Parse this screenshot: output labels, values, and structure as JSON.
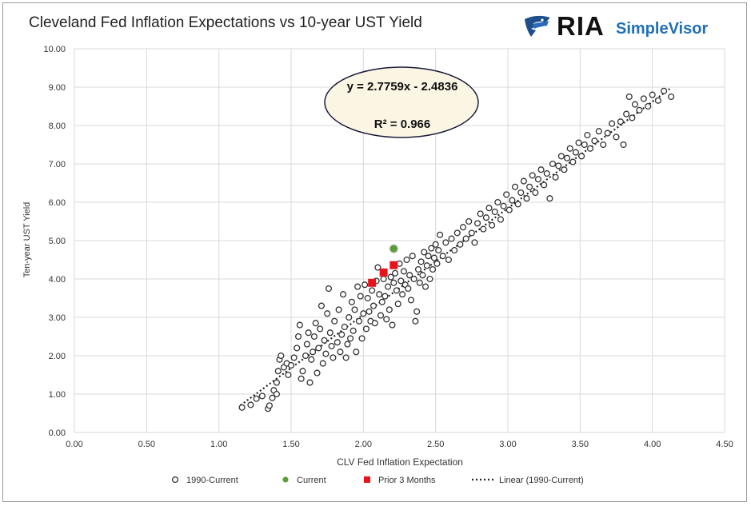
{
  "chart_data": {
    "type": "scatter",
    "title": "Cleveland Fed Inflation Expectations vs 10-year UST Yield",
    "xlabel": "CLV Fed Inflation Expectation",
    "ylabel": "Ten-year UST Yield",
    "xlim": [
      0,
      4.5
    ],
    "ylim": [
      0,
      10
    ],
    "x_ticks": [
      "0.00",
      "0.50",
      "1.00",
      "1.50",
      "2.00",
      "2.50",
      "3.00",
      "3.50",
      "4.00",
      "4.50"
    ],
    "y_ticks": [
      "0.00",
      "1.00",
      "2.00",
      "3.00",
      "4.00",
      "5.00",
      "6.00",
      "7.00",
      "8.00",
      "9.00",
      "10.00"
    ],
    "grid": true,
    "legend_position": "bottom",
    "equation": "y = 2.7759x - 2.4836",
    "r_squared": "R² = 0.966",
    "trendline": {
      "name": "Linear (1990-Current)",
      "slope": 2.7759,
      "intercept": -2.4836,
      "x_range": [
        1.15,
        4.12
      ],
      "color": "#222222"
    },
    "series": [
      {
        "name": "1990-Current",
        "marker": "hollow-circle",
        "color": "#333333",
        "points": [
          [
            1.16,
            0.65
          ],
          [
            1.22,
            0.72
          ],
          [
            1.26,
            0.88
          ],
          [
            1.3,
            0.95
          ],
          [
            1.34,
            0.62
          ],
          [
            1.35,
            0.7
          ],
          [
            1.37,
            0.9
          ],
          [
            1.38,
            1.1
          ],
          [
            1.4,
            1.0
          ],
          [
            1.4,
            1.3
          ],
          [
            1.41,
            1.6
          ],
          [
            1.42,
            1.9
          ],
          [
            1.43,
            2.0
          ],
          [
            1.45,
            1.7
          ],
          [
            1.47,
            1.8
          ],
          [
            1.48,
            1.5
          ],
          [
            1.5,
            1.75
          ],
          [
            1.52,
            1.95
          ],
          [
            1.54,
            2.2
          ],
          [
            1.55,
            2.5
          ],
          [
            1.56,
            2.8
          ],
          [
            1.57,
            1.4
          ],
          [
            1.58,
            1.6
          ],
          [
            1.6,
            2.0
          ],
          [
            1.61,
            2.3
          ],
          [
            1.62,
            2.6
          ],
          [
            1.63,
            1.3
          ],
          [
            1.64,
            1.9
          ],
          [
            1.65,
            2.1
          ],
          [
            1.66,
            2.5
          ],
          [
            1.67,
            2.85
          ],
          [
            1.68,
            1.55
          ],
          [
            1.69,
            2.2
          ],
          [
            1.7,
            2.7
          ],
          [
            1.71,
            3.3
          ],
          [
            1.72,
            1.8
          ],
          [
            1.73,
            2.4
          ],
          [
            1.74,
            2.05
          ],
          [
            1.75,
            3.1
          ],
          [
            1.76,
            3.75
          ],
          [
            1.77,
            2.6
          ],
          [
            1.78,
            2.25
          ],
          [
            1.79,
            1.95
          ],
          [
            1.8,
            2.9
          ],
          [
            1.82,
            2.35
          ],
          [
            1.83,
            3.2
          ],
          [
            1.84,
            2.1
          ],
          [
            1.85,
            2.55
          ],
          [
            1.86,
            3.6
          ],
          [
            1.87,
            2.75
          ],
          [
            1.88,
            1.95
          ],
          [
            1.89,
            2.3
          ],
          [
            1.9,
            3.0
          ],
          [
            1.91,
            2.45
          ],
          [
            1.92,
            3.4
          ],
          [
            1.93,
            2.65
          ],
          [
            1.94,
            3.2
          ],
          [
            1.95,
            2.1
          ],
          [
            1.96,
            3.8
          ],
          [
            1.97,
            2.9
          ],
          [
            1.98,
            3.55
          ],
          [
            1.99,
            2.45
          ],
          [
            2.0,
            3.1
          ],
          [
            2.01,
            3.85
          ],
          [
            2.02,
            2.7
          ],
          [
            2.03,
            3.5
          ],
          [
            2.04,
            3.15
          ],
          [
            2.05,
            2.9
          ],
          [
            2.06,
            3.7
          ],
          [
            2.07,
            3.3
          ],
          [
            2.08,
            2.85
          ],
          [
            2.09,
            3.95
          ],
          [
            2.1,
            4.3
          ],
          [
            2.11,
            3.6
          ],
          [
            2.12,
            3.05
          ],
          [
            2.13,
            3.4
          ],
          [
            2.14,
            4.0
          ],
          [
            2.15,
            3.55
          ],
          [
            2.16,
            2.95
          ],
          [
            2.17,
            3.8
          ],
          [
            2.18,
            3.2
          ],
          [
            2.19,
            4.05
          ],
          [
            2.2,
            2.8
          ],
          [
            2.21,
            3.9
          ],
          [
            2.22,
            4.15
          ],
          [
            2.23,
            3.7
          ],
          [
            2.24,
            3.35
          ],
          [
            2.25,
            4.4
          ],
          [
            2.26,
            3.95
          ],
          [
            2.27,
            3.6
          ],
          [
            2.28,
            4.2
          ],
          [
            2.29,
            3.85
          ],
          [
            2.3,
            4.5
          ],
          [
            2.31,
            3.75
          ],
          [
            2.32,
            4.1
          ],
          [
            2.33,
            3.45
          ],
          [
            2.34,
            4.6
          ],
          [
            2.35,
            4.0
          ],
          [
            2.36,
            2.9
          ],
          [
            2.37,
            3.15
          ],
          [
            2.38,
            4.25
          ],
          [
            2.39,
            3.9
          ],
          [
            2.4,
            4.45
          ],
          [
            2.41,
            4.1
          ],
          [
            2.42,
            4.7
          ],
          [
            2.43,
            3.8
          ],
          [
            2.44,
            4.35
          ],
          [
            2.45,
            4.6
          ],
          [
            2.46,
            4.0
          ],
          [
            2.47,
            4.8
          ],
          [
            2.48,
            4.25
          ],
          [
            2.49,
            4.55
          ],
          [
            2.5,
            4.9
          ],
          [
            2.51,
            4.4
          ],
          [
            2.52,
            4.75
          ],
          [
            2.53,
            5.15
          ],
          [
            2.55,
            4.6
          ],
          [
            2.57,
            4.95
          ],
          [
            2.59,
            4.5
          ],
          [
            2.61,
            5.05
          ],
          [
            2.63,
            4.75
          ],
          [
            2.65,
            5.2
          ],
          [
            2.67,
            4.9
          ],
          [
            2.69,
            5.35
          ],
          [
            2.71,
            5.05
          ],
          [
            2.73,
            5.5
          ],
          [
            2.75,
            5.2
          ],
          [
            2.77,
            4.95
          ],
          [
            2.79,
            5.45
          ],
          [
            2.81,
            5.7
          ],
          [
            2.83,
            5.3
          ],
          [
            2.85,
            5.6
          ],
          [
            2.87,
            5.85
          ],
          [
            2.89,
            5.4
          ],
          [
            2.91,
            5.75
          ],
          [
            2.93,
            6.0
          ],
          [
            2.95,
            5.55
          ],
          [
            2.97,
            5.9
          ],
          [
            2.99,
            6.2
          ],
          [
            3.01,
            5.8
          ],
          [
            3.03,
            6.05
          ],
          [
            3.05,
            6.4
          ],
          [
            3.07,
            5.95
          ],
          [
            3.09,
            6.25
          ],
          [
            3.11,
            6.55
          ],
          [
            3.13,
            6.1
          ],
          [
            3.15,
            6.4
          ],
          [
            3.17,
            6.7
          ],
          [
            3.19,
            6.25
          ],
          [
            3.21,
            6.6
          ],
          [
            3.23,
            6.85
          ],
          [
            3.25,
            6.45
          ],
          [
            3.27,
            6.75
          ],
          [
            3.29,
            6.1
          ],
          [
            3.31,
            7.0
          ],
          [
            3.33,
            6.65
          ],
          [
            3.35,
            6.95
          ],
          [
            3.37,
            7.2
          ],
          [
            3.39,
            6.85
          ],
          [
            3.41,
            7.15
          ],
          [
            3.43,
            7.4
          ],
          [
            3.45,
            7.05
          ],
          [
            3.47,
            7.3
          ],
          [
            3.49,
            7.55
          ],
          [
            3.51,
            7.2
          ],
          [
            3.53,
            7.5
          ],
          [
            3.55,
            7.75
          ],
          [
            3.57,
            7.4
          ],
          [
            3.6,
            7.6
          ],
          [
            3.63,
            7.85
          ],
          [
            3.66,
            7.5
          ],
          [
            3.69,
            7.8
          ],
          [
            3.72,
            8.05
          ],
          [
            3.75,
            7.7
          ],
          [
            3.78,
            8.1
          ],
          [
            3.8,
            7.5
          ],
          [
            3.82,
            8.3
          ],
          [
            3.84,
            8.75
          ],
          [
            3.86,
            8.2
          ],
          [
            3.88,
            8.55
          ],
          [
            3.91,
            8.4
          ],
          [
            3.94,
            8.7
          ],
          [
            3.97,
            8.5
          ],
          [
            4.0,
            8.8
          ],
          [
            4.04,
            8.65
          ],
          [
            4.08,
            8.9
          ],
          [
            4.13,
            8.75
          ]
        ]
      },
      {
        "name": "Current",
        "marker": "circle",
        "color": "#5a9e3a",
        "points": [
          [
            2.21,
            4.79
          ]
        ]
      },
      {
        "name": "Prior 3 Months",
        "marker": "square",
        "color": "#e8141c",
        "points": [
          [
            2.06,
            3.9
          ],
          [
            2.14,
            4.17
          ],
          [
            2.21,
            4.36
          ]
        ]
      }
    ]
  },
  "logo": {
    "brand": "RIA",
    "product": "SimpleVisor",
    "icon": "eagle-icon",
    "brand_color": "#1f6fb5"
  }
}
